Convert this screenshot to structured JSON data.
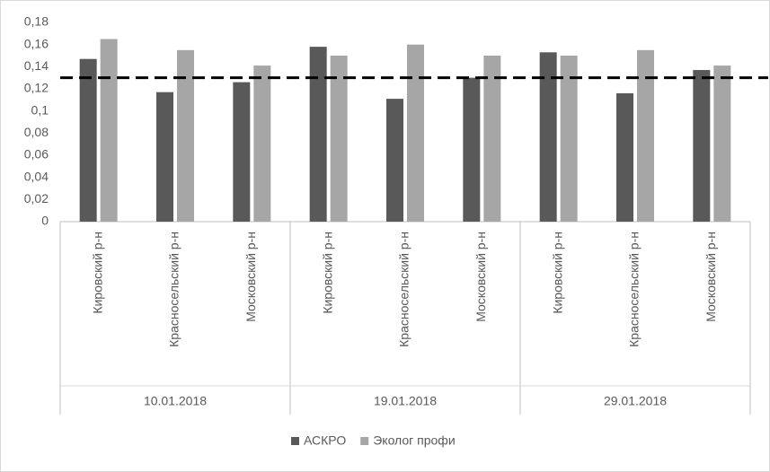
{
  "chart_data": {
    "type": "bar",
    "categories": [
      "Кировский р-н",
      "Красносельский р-н",
      "Московский р-н",
      "Кировский р-н",
      "Красносельский р-н",
      "Московский р-н",
      "Кировский р-н",
      "Красносельский р-н",
      "Московский р-н"
    ],
    "category_groups": [
      "10.01.2018",
      "19.01.2018",
      "29.01.2018"
    ],
    "series": [
      {
        "name": "АСКРО",
        "color": "#595959",
        "values": [
          0.147,
          0.117,
          0.126,
          0.158,
          0.111,
          0.13,
          0.153,
          0.116,
          0.137
        ]
      },
      {
        "name": "Эколог профи",
        "color": "#a6a6a6",
        "values": [
          0.165,
          0.155,
          0.141,
          0.15,
          0.16,
          0.15,
          0.15,
          0.155,
          0.141
        ]
      }
    ],
    "threshold": 0.13,
    "ylim": [
      0,
      0.18
    ],
    "yticks": [
      0,
      {
        "value": 0.02,
        "label": "0,02"
      },
      {
        "value": 0.04,
        "label": "0,04"
      },
      {
        "value": 0.06,
        "label": "0,06"
      },
      {
        "value": 0.08,
        "label": "0,08"
      },
      {
        "value": 0.1,
        "label": "0,1"
      },
      {
        "value": 0.12,
        "label": "0,12"
      },
      {
        "value": 0.14,
        "label": "0,14"
      },
      {
        "value": 0.16,
        "label": "0,16"
      },
      {
        "value": 0.18,
        "label": "0,18"
      }
    ],
    "legend": "bottom"
  }
}
